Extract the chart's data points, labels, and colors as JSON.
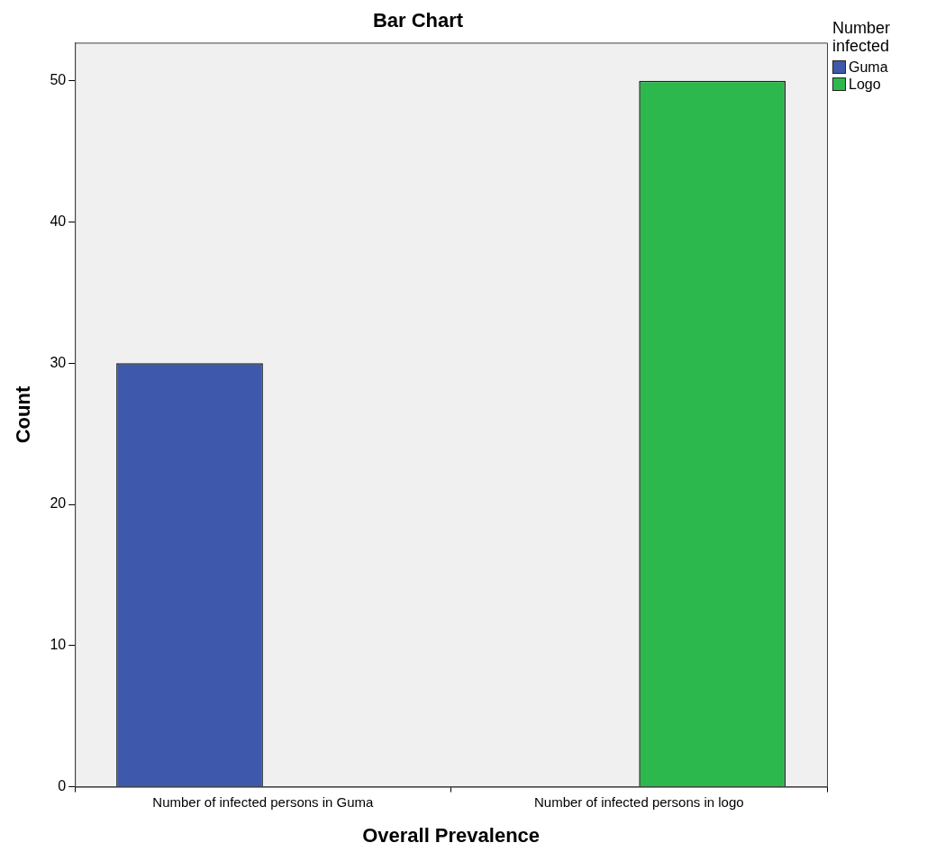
{
  "chart_data": {
    "type": "bar",
    "title": "Bar Chart",
    "xlabel": "Overall Prevalence",
    "ylabel": "Count",
    "legend_title": "Number infected",
    "categories": [
      "Number of infected persons in Guma",
      "Number of infected persons in logo"
    ],
    "series": [
      {
        "name": "Guma",
        "color": "#3e58ac",
        "values": [
          30,
          null
        ]
      },
      {
        "name": "Logo",
        "color": "#2db84d",
        "values": [
          null,
          50
        ]
      }
    ],
    "ylim": [
      0,
      52.7
    ],
    "yticks": [
      0,
      10,
      20,
      30,
      40,
      50
    ],
    "grid": false,
    "legend": "top right"
  }
}
